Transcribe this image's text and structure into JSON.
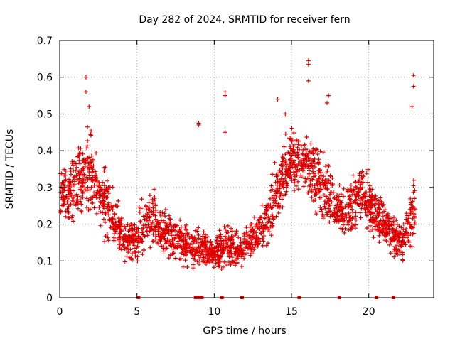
{
  "chart_data": {
    "type": "scatter",
    "title": "Day 282 of 2024, SRMTID for receiver fern",
    "xlabel": "GPS time / hours",
    "ylabel": "SRMTID / TECUs",
    "xlim": [
      0,
      24.2
    ],
    "ylim": [
      0,
      0.7
    ],
    "xticks": [
      0,
      5,
      10,
      15,
      20
    ],
    "xtick_labels": [
      "0",
      "5",
      "10",
      "15",
      "20"
    ],
    "yticks": [
      0,
      0.1,
      0.2,
      0.3,
      0.4,
      0.5,
      0.6,
      0.7
    ],
    "ytick_labels": [
      "0",
      "0.1",
      "0.2",
      "0.3",
      "0.4",
      "0.5",
      "0.6",
      "0.7"
    ],
    "grid": true,
    "marker": "+",
    "color": "#e00000",
    "profile": {
      "x": [
        0,
        0.5,
        1,
        1.5,
        2,
        2.5,
        3,
        3.5,
        4,
        4.5,
        5,
        5.5,
        6,
        6.5,
        7,
        7.5,
        8,
        8.5,
        9,
        9.5,
        10,
        10.5,
        11,
        11.5,
        12,
        12.5,
        13,
        13.5,
        14,
        14.5,
        15,
        15.5,
        16,
        16.5,
        17,
        17.5,
        18,
        18.5,
        19,
        19.5,
        20,
        20.5,
        21,
        21.5,
        22,
        22.5,
        23
      ],
      "center": [
        0.3,
        0.28,
        0.3,
        0.33,
        0.35,
        0.28,
        0.27,
        0.22,
        0.17,
        0.15,
        0.16,
        0.2,
        0.21,
        0.19,
        0.17,
        0.16,
        0.15,
        0.14,
        0.14,
        0.13,
        0.12,
        0.13,
        0.14,
        0.13,
        0.14,
        0.16,
        0.18,
        0.22,
        0.28,
        0.34,
        0.37,
        0.37,
        0.36,
        0.33,
        0.31,
        0.28,
        0.24,
        0.23,
        0.26,
        0.28,
        0.26,
        0.22,
        0.2,
        0.18,
        0.15,
        0.18,
        0.25
      ],
      "spread": [
        0.1,
        0.1,
        0.12,
        0.14,
        0.14,
        0.12,
        0.13,
        0.1,
        0.07,
        0.07,
        0.08,
        0.1,
        0.1,
        0.09,
        0.08,
        0.08,
        0.07,
        0.07,
        0.08,
        0.06,
        0.05,
        0.08,
        0.07,
        0.06,
        0.07,
        0.07,
        0.08,
        0.1,
        0.13,
        0.13,
        0.12,
        0.1,
        0.11,
        0.12,
        0.12,
        0.12,
        0.1,
        0.09,
        0.11,
        0.11,
        0.1,
        0.09,
        0.08,
        0.08,
        0.07,
        0.09,
        0.13
      ]
    },
    "highlights": [
      {
        "x": 1.7,
        "y": 0.6
      },
      {
        "x": 1.7,
        "y": 0.56
      },
      {
        "x": 1.9,
        "y": 0.52
      },
      {
        "x": 16.1,
        "y": 0.645
      },
      {
        "x": 16.1,
        "y": 0.635
      },
      {
        "x": 16.1,
        "y": 0.59
      },
      {
        "x": 10.7,
        "y": 0.56
      },
      {
        "x": 10.7,
        "y": 0.55
      },
      {
        "x": 10.7,
        "y": 0.45
      },
      {
        "x": 9.0,
        "y": 0.475
      },
      {
        "x": 9.0,
        "y": 0.47
      },
      {
        "x": 22.9,
        "y": 0.605
      },
      {
        "x": 22.9,
        "y": 0.575
      },
      {
        "x": 22.8,
        "y": 0.52
      },
      {
        "x": 17.4,
        "y": 0.55
      },
      {
        "x": 17.3,
        "y": 0.53
      },
      {
        "x": 14.1,
        "y": 0.54
      },
      {
        "x": 14.6,
        "y": 0.5
      }
    ],
    "data_gaps_hours": [
      5.1,
      8.8,
      8.95,
      9.2,
      10.5,
      11.8,
      15.5,
      18.1,
      20.5,
      21.6
    ]
  }
}
